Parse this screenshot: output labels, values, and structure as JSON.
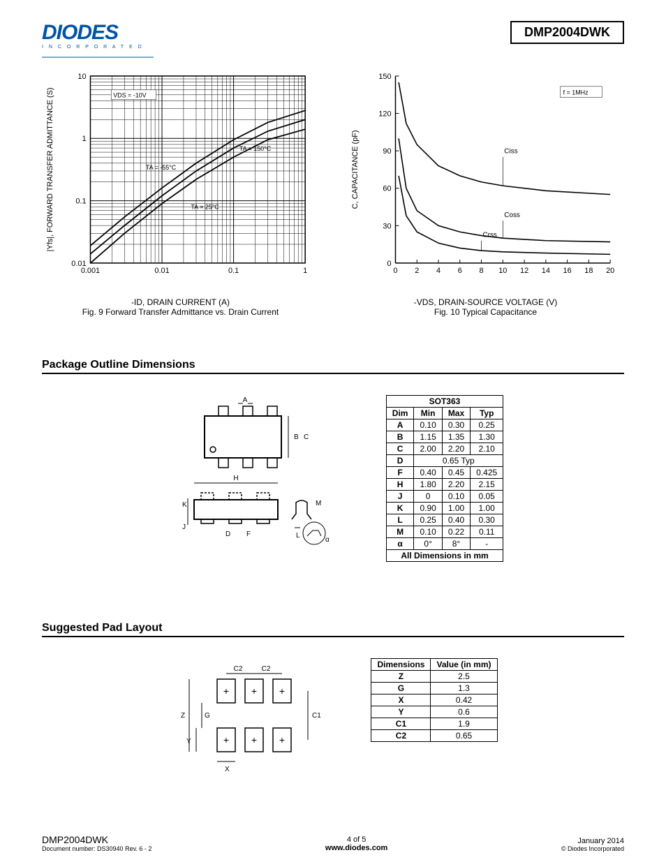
{
  "header": {
    "logo_main": "DIODES",
    "logo_sub": "I N C O R P O R A T E D",
    "part_number": "DMP2004DWK"
  },
  "chart1": {
    "type": "line-loglog",
    "y_label": "|Yfs|, FORWARD TRANSFER ADMITTANCE (S)",
    "x_label": "-ID, DRAIN CURRENT (A)",
    "caption": "Fig. 9  Forward Transfer Admittance vs. Drain Current",
    "annotation_vds": "VDS = -10V",
    "ann_t1": "TA = -55°C",
    "ann_t2": "TA = 25°C",
    "ann_t3": "TA = 150°C",
    "xlim": [
      0.001,
      1
    ],
    "ylim": [
      0.01,
      10
    ],
    "xticks": [
      "0.001",
      "0.01",
      "0.1",
      "1"
    ],
    "yticks": [
      "0.01",
      "0.1",
      "1",
      "10"
    ],
    "line_color": "#000000",
    "grid_color": "#000000",
    "background": "#ffffff",
    "series": {
      "t_neg55": [
        [
          0.001,
          0.019
        ],
        [
          0.003,
          0.055
        ],
        [
          0.01,
          0.16
        ],
        [
          0.03,
          0.4
        ],
        [
          0.1,
          0.95
        ],
        [
          0.3,
          1.8
        ],
        [
          1,
          2.8
        ]
      ],
      "t_25": [
        [
          0.001,
          0.014
        ],
        [
          0.003,
          0.04
        ],
        [
          0.01,
          0.12
        ],
        [
          0.03,
          0.3
        ],
        [
          0.1,
          0.7
        ],
        [
          0.3,
          1.3
        ],
        [
          1,
          2.0
        ]
      ],
      "t_150": [
        [
          0.001,
          0.01
        ],
        [
          0.003,
          0.03
        ],
        [
          0.01,
          0.09
        ],
        [
          0.03,
          0.22
        ],
        [
          0.1,
          0.5
        ],
        [
          0.3,
          0.95
        ],
        [
          1,
          1.4
        ]
      ]
    }
  },
  "chart2": {
    "type": "line",
    "y_label": "C, CAPACITANCE (pF)",
    "x_label": "-VDS, DRAIN-SOURCE VOLTAGE (V)",
    "caption": "Fig. 10  Typical Capacitance",
    "annotation_f": "f = 1MHz",
    "lbl_ciss": "Ciss",
    "lbl_coss": "Coss",
    "lbl_crss": "Crss",
    "xlim": [
      0,
      20
    ],
    "ylim": [
      0,
      150
    ],
    "xticks": [
      0,
      2,
      4,
      6,
      8,
      10,
      12,
      14,
      16,
      18,
      20
    ],
    "yticks": [
      0,
      30,
      60,
      90,
      120,
      150
    ],
    "line_color": "#000000",
    "background": "#ffffff",
    "series": {
      "ciss": [
        [
          0.3,
          145
        ],
        [
          1,
          112
        ],
        [
          2,
          95
        ],
        [
          4,
          78
        ],
        [
          6,
          70
        ],
        [
          8,
          65
        ],
        [
          10,
          62
        ],
        [
          14,
          58
        ],
        [
          20,
          55
        ]
      ],
      "coss": [
        [
          0.3,
          100
        ],
        [
          1,
          60
        ],
        [
          2,
          42
        ],
        [
          4,
          30
        ],
        [
          6,
          25
        ],
        [
          8,
          22
        ],
        [
          10,
          20
        ],
        [
          14,
          18
        ],
        [
          20,
          17
        ]
      ],
      "crss": [
        [
          0.3,
          70
        ],
        [
          1,
          38
        ],
        [
          2,
          25
        ],
        [
          4,
          16
        ],
        [
          6,
          12
        ],
        [
          8,
          10
        ],
        [
          10,
          9
        ],
        [
          14,
          8
        ],
        [
          20,
          7
        ]
      ]
    }
  },
  "sections": {
    "pkg_title": "Package Outline Dimensions",
    "pad_title": "Suggested Pad Layout"
  },
  "pkg_table": {
    "title": "SOT363",
    "headers": [
      "Dim",
      "Min",
      "Max",
      "Typ"
    ],
    "rows": [
      [
        "A",
        "0.10",
        "0.30",
        "0.25"
      ],
      [
        "B",
        "1.15",
        "1.35",
        "1.30"
      ],
      [
        "C",
        "2.00",
        "2.20",
        "2.10"
      ]
    ],
    "row_d": [
      "D",
      "0.65 Typ"
    ],
    "rows2": [
      [
        "F",
        "0.40",
        "0.45",
        "0.425"
      ],
      [
        "H",
        "1.80",
        "2.20",
        "2.15"
      ],
      [
        "J",
        "0",
        "0.10",
        "0.05"
      ],
      [
        "K",
        "0.90",
        "1.00",
        "1.00"
      ],
      [
        "L",
        "0.25",
        "0.40",
        "0.30"
      ],
      [
        "M",
        "0.10",
        "0.22",
        "0.11"
      ],
      [
        "α",
        "0°",
        "8°",
        "-"
      ]
    ],
    "footer": "All Dimensions in mm"
  },
  "pad_table": {
    "headers": [
      "Dimensions",
      "Value (in mm)"
    ],
    "rows": [
      [
        "Z",
        "2.5"
      ],
      [
        "G",
        "1.3"
      ],
      [
        "X",
        "0.42"
      ],
      [
        "Y",
        "0.6"
      ],
      [
        "C1",
        "1.9"
      ],
      [
        "C2",
        "0.65"
      ]
    ]
  },
  "pkg_diagram": {
    "labels": {
      "A": "A",
      "B": "B",
      "C": "C",
      "H": "H",
      "K": "K",
      "J": "J",
      "D": "D",
      "F": "F",
      "L": "L",
      "M": "M",
      "alpha": "α"
    }
  },
  "pad_diagram": {
    "labels": {
      "C2a": "C2",
      "C2b": "C2",
      "Z": "Z",
      "G": "G",
      "Y": "Y",
      "X": "X",
      "C1": "C1"
    }
  },
  "footer": {
    "part": "DMP2004DWK",
    "doc": "Document number: DS30940 Rev. 6 - 2",
    "page": "4 of 5",
    "url": "www.diodes.com",
    "date": "January 2014",
    "copyright": "© Diodes Incorporated"
  }
}
